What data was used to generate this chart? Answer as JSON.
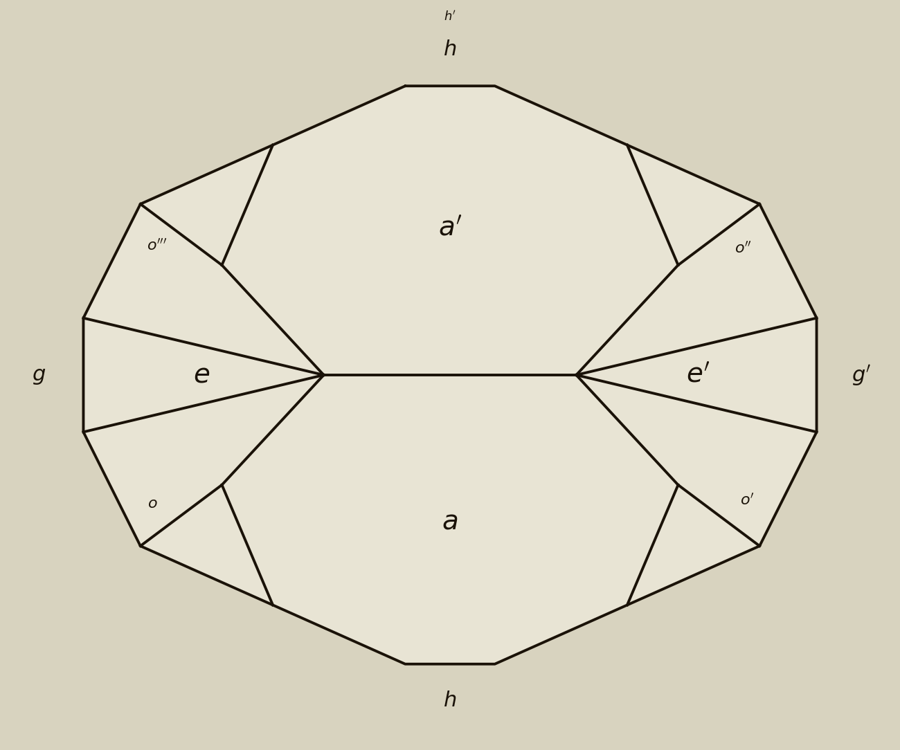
{
  "bg_color": "#d8d3bf",
  "line_color": "#1a1208",
  "line_width": 2.8,
  "fig_width": 13.0,
  "fig_height": 10.84,
  "background_paper": "#cfc9b2"
}
